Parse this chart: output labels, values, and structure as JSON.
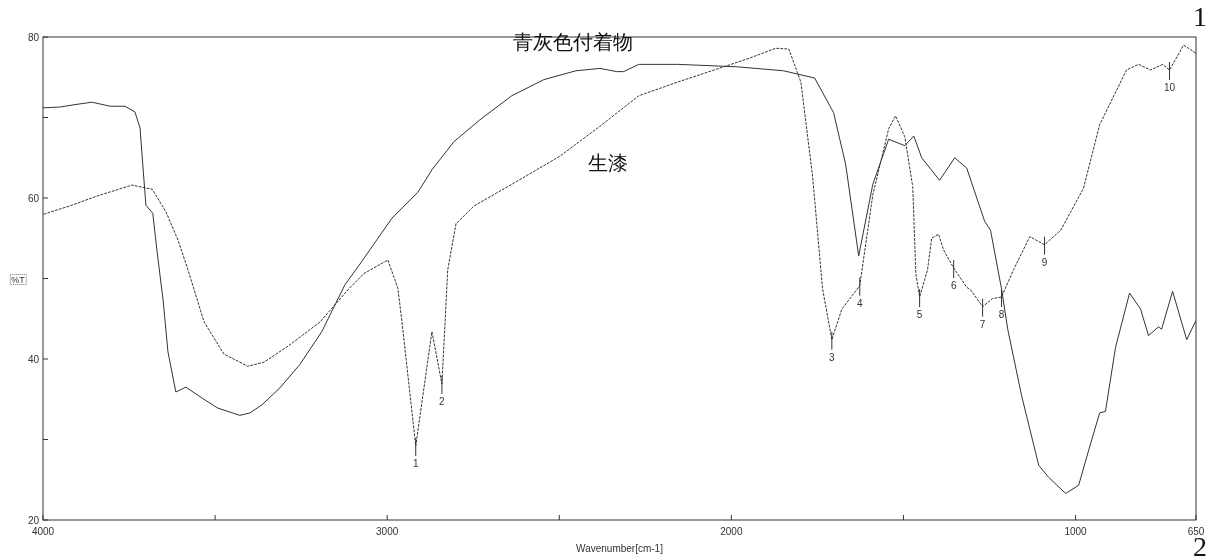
{
  "chart_data": {
    "type": "line",
    "xlabel": "Wavenumber[cm-1]",
    "ylabel": "%T",
    "xlim": [
      4000,
      650
    ],
    "ylim": [
      20,
      80
    ],
    "xticks": [
      4000,
      {
        "value": 3500,
        "label": null
      },
      3000,
      {
        "value": 2500,
        "label": null
      },
      2000,
      {
        "value": 1500,
        "label": null
      },
      1000,
      650
    ],
    "yticks": [
      20,
      {
        "value": 30,
        "label": null
      },
      40,
      {
        "value": 50,
        "label": null
      },
      60,
      {
        "value": 70,
        "label": null
      },
      80
    ],
    "grid": false,
    "series": [
      {
        "name": "青灰色付着物",
        "color": "#333333",
        "line_style": "solid",
        "x": [
          4000,
          3951,
          3907,
          3858,
          3805,
          3762,
          3733,
          3718,
          3710,
          3701,
          3689,
          3681,
          3669,
          3651,
          3637,
          3614,
          3585,
          3529,
          3492,
          3428,
          3399,
          3364,
          3312,
          3254,
          3190,
          3123,
          3079,
          2986,
          2911,
          2870,
          2806,
          2731,
          2638,
          2545,
          2452,
          2382,
          2333,
          2313,
          2269,
          2156,
          1984,
          1848,
          1758,
          1703,
          1668,
          1630,
          1589,
          1543,
          1496,
          1470,
          1447,
          1395,
          1351,
          1316,
          1264,
          1247,
          1215,
          1197,
          1157,
          1107,
          1078,
          1029,
          991,
          965,
          930,
          913,
          884,
          843,
          811,
          788,
          759,
          750,
          718,
          677,
          651
        ],
        "values": [
          71.2,
          71.3,
          71.6,
          71.9,
          71.4,
          71.4,
          70.7,
          68.7,
          64.1,
          59.1,
          58.5,
          58.1,
          53.5,
          47.3,
          40.9,
          35.9,
          36.5,
          34.9,
          33.9,
          33.0,
          33.3,
          34.3,
          36.4,
          39.3,
          43.4,
          49.2,
          51.8,
          57.5,
          60.7,
          63.5,
          67.0,
          69.7,
          72.7,
          74.7,
          75.8,
          76.1,
          75.7,
          75.7,
          76.6,
          76.6,
          76.3,
          75.8,
          74.9,
          70.6,
          64.2,
          52.8,
          61.7,
          67.3,
          66.5,
          67.7,
          65.0,
          62.2,
          65.0,
          63.7,
          57.1,
          56.0,
          48.7,
          43.7,
          35.5,
          26.8,
          25.3,
          23.3,
          24.3,
          28.2,
          33.3,
          33.5,
          41.4,
          48.2,
          46.2,
          42.9,
          44.0,
          43.7,
          48.4,
          42.4,
          44.7
        ]
      },
      {
        "name": "生漆",
        "color": "#333333",
        "line_style": "dotted",
        "x": [
          3997,
          3916,
          3846,
          3742,
          3683,
          3643,
          3608,
          3579,
          3532,
          3474,
          3405,
          3358,
          3288,
          3195,
          3114,
          3068,
          2998,
          2969,
          2957,
          2917,
          2870,
          2841,
          2824,
          2800,
          2748,
          2626,
          2498,
          2382,
          2269,
          2156,
          1952,
          1871,
          1833,
          1798,
          1764,
          1735,
          1708,
          1679,
          1627,
          1589,
          1543,
          1523,
          1496,
          1473,
          1464,
          1453,
          1430,
          1418,
          1398,
          1383,
          1354,
          1316,
          1305,
          1270,
          1241,
          1215,
          1180,
          1133,
          1090,
          1043,
          977,
          930,
          852,
          817,
          782,
          747,
          727,
          686,
          651
        ],
        "values": [
          58.0,
          59.1,
          60.2,
          61.6,
          61.1,
          58.3,
          54.8,
          51.1,
          44.6,
          40.6,
          39.1,
          39.6,
          41.6,
          44.6,
          48.6,
          50.6,
          52.3,
          48.8,
          44.6,
          29.2,
          43.4,
          36.9,
          51.1,
          56.8,
          59.0,
          62.0,
          65.2,
          68.9,
          72.7,
          74.4,
          77.3,
          78.6,
          78.5,
          74.4,
          62.7,
          48.7,
          42.4,
          46.2,
          49.1,
          60.4,
          68.6,
          70.2,
          67.6,
          61.4,
          50.6,
          47.7,
          51.1,
          55.0,
          55.5,
          53.5,
          51.3,
          48.9,
          48.6,
          46.5,
          47.5,
          47.7,
          51.1,
          55.2,
          54.2,
          56.0,
          61.2,
          69.1,
          75.9,
          76.6,
          75.9,
          76.6,
          75.9,
          79.0,
          78.0
        ]
      }
    ],
    "annotations": [
      "1",
      "2",
      {
        "text": "1",
        "x": 2917,
        "y": 29.2
      },
      {
        "text": "2",
        "x": 2841,
        "y": 36.9
      },
      {
        "text": "3",
        "x": 1708,
        "y": 42.4
      },
      {
        "text": "4",
        "x": 1627,
        "y": 49.1
      },
      {
        "text": "5",
        "x": 1453,
        "y": 47.7
      },
      {
        "text": "6",
        "x": 1354,
        "y": 51.3
      },
      {
        "text": "7",
        "x": 1270,
        "y": 46.5
      },
      {
        "text": "8",
        "x": 1215,
        "y": 47.7
      },
      {
        "text": "9",
        "x": 1090,
        "y": 54.2
      },
      {
        "text": "10",
        "x": 727,
        "y": 75.9
      }
    ]
  }
}
